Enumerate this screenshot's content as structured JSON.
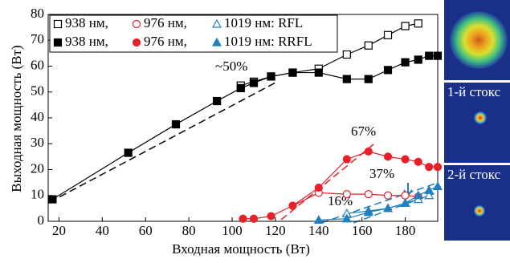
{
  "chart_data": {
    "type": "scatter",
    "xlabel": "Входная мощность (Вт)",
    "ylabel": "Выходная мощность (Вт)",
    "xlim": [
      15,
      195
    ],
    "ylim": [
      0,
      80
    ],
    "xticks": [
      20,
      40,
      60,
      80,
      100,
      120,
      140,
      160,
      180
    ],
    "yticks": [
      0,
      10,
      20,
      30,
      40,
      50,
      60,
      70,
      80
    ],
    "annotations": [
      "~50%",
      "67%",
      "37%",
      "16%"
    ],
    "series": [
      {
        "name": "938 нм,",
        "color": "#000000",
        "marker": "square",
        "filled": false,
        "x": [
          104,
          110,
          118,
          128,
          140,
          153,
          163,
          172,
          180,
          186
        ],
        "values": [
          52.5,
          54,
          56,
          57.5,
          59,
          64.5,
          68,
          72,
          75.5,
          76.5
        ]
      },
      {
        "name": "976 нм,",
        "color": "#e8202a",
        "marker": "circle",
        "filled": false,
        "x": [
          128,
          140,
          153,
          163,
          172,
          180,
          186
        ],
        "values": [
          6,
          11,
          10.5,
          10.5,
          10,
          10,
          9.5
        ]
      },
      {
        "name": "1019 нм: RFL",
        "color": "#1f7fc0",
        "marker": "triangle",
        "filled": false,
        "x": [
          153,
          163,
          172,
          180,
          186,
          191
        ],
        "values": [
          3,
          4,
          5,
          7,
          8.5,
          10
        ]
      },
      {
        "name": "938 нм,",
        "color": "#000000",
        "marker": "square",
        "filled": true,
        "x": [
          17,
          52,
          74,
          93,
          104,
          110,
          118,
          128,
          140,
          153,
          163,
          172,
          180,
          186,
          191,
          195
        ],
        "values": [
          8.5,
          26.5,
          37.5,
          46.5,
          51.5,
          53.5,
          56,
          57.5,
          57.5,
          55,
          55,
          58.5,
          61.5,
          62.5,
          64,
          64
        ]
      },
      {
        "name": "976 нм,",
        "color": "#e8202a",
        "marker": "circle",
        "filled": true,
        "x": [
          105,
          110,
          118,
          128,
          140,
          153,
          163,
          172,
          180,
          186,
          191,
          195
        ],
        "values": [
          1,
          1,
          2,
          6,
          13,
          24,
          27,
          25,
          24,
          23,
          21,
          21
        ]
      },
      {
        "name": "1019 нм: RRFL",
        "color": "#1f7fc0",
        "marker": "triangle",
        "filled": true,
        "x": [
          140,
          153,
          163,
          172,
          180,
          186,
          191,
          195
        ],
        "values": [
          0.5,
          1,
          3.5,
          5,
          7,
          10,
          12,
          13.5
        ]
      }
    ]
  },
  "panels": [
    "1-й стокс",
    "2-й стокс"
  ]
}
